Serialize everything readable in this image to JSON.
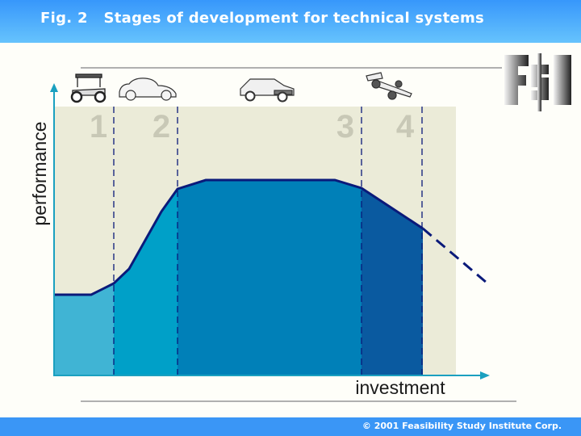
{
  "header": {
    "title": "Fig. 2   Stages of development for technical systems"
  },
  "footer": {
    "copyright": "© 2001 Feasibility Study Institute Corp."
  },
  "logo": {
    "text": "FSI"
  },
  "diagram": {
    "y_axis_label": "performance",
    "x_axis_label": "investment",
    "stages": [
      "1",
      "2",
      "3",
      "4"
    ],
    "stage_icons": [
      "vintage-car-icon",
      "classic-car-icon",
      "modern-car-icon",
      "race-car-icon"
    ],
    "colors": {
      "stage1": "#40b4d4",
      "stage2": "#00a0c8",
      "stage3": "#0080b8",
      "stage4": "#0a5aa0",
      "curve": "#0a1a7a",
      "background": "#ebebd8",
      "axis": "#1aa0c0"
    }
  }
}
